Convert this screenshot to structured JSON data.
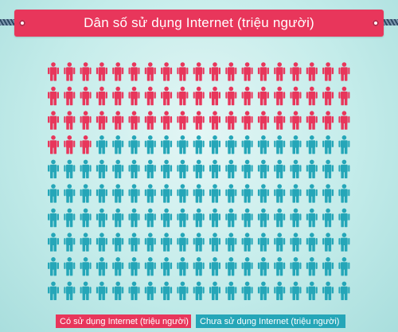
{
  "header": {
    "title": "Dân số sử dụng Internet (triệu người)"
  },
  "colors": {
    "background": "#c9eeec",
    "accent_red": "#e8365b",
    "teal": "#25a6b8",
    "white": "#ffffff"
  },
  "icons": {
    "person": "person-icon",
    "rope": "rope-icon",
    "pin": "pin-icon"
  },
  "legend": {
    "using_label": "Có sử dụng Internet (triệu người)",
    "not_using_label": "Chưa sử dụng Internet (triệu người)"
  },
  "chart_data": {
    "type": "pictograph",
    "title": "Dân số sử dụng Internet (triệu người)",
    "rows": 10,
    "columns": 19,
    "total_icons": 190,
    "series": [
      {
        "name": "Có sử dụng Internet (triệu người)",
        "value": 60,
        "color": "#e8365b"
      },
      {
        "name": "Chưa sử dụng Internet (triệu người)",
        "value": 130,
        "color": "#25a6b8"
      }
    ]
  }
}
